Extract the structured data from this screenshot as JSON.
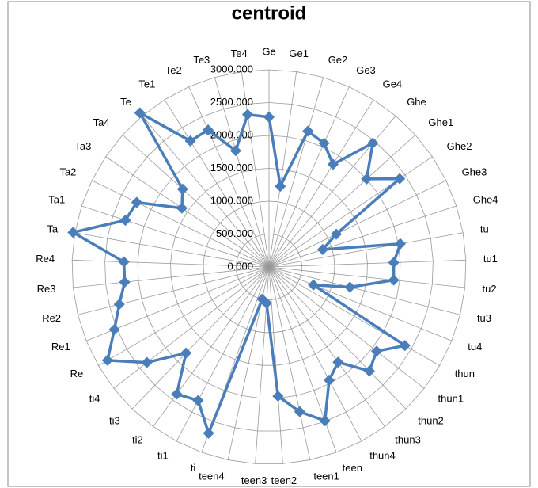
{
  "chart_data": {
    "type": "radar",
    "title": "centroid",
    "categories": [
      "Ge",
      "Ge1",
      "Ge2",
      "Ge3",
      "Ge4",
      "Ghe",
      "Ghe1",
      "Ghe2",
      "Ghe3",
      "Ghe4",
      "tu",
      "tu1",
      "tu2",
      "tu3",
      "tu4",
      "thun",
      "thun1",
      "thun2",
      "thun3",
      "thun4",
      "teen",
      "teen1",
      "teen2",
      "teen3",
      "teen4",
      "ti",
      "ti1",
      "ti2",
      "ti3",
      "ti4",
      "Re",
      "Re1",
      "Re2",
      "Re3",
      "Re4",
      "Ta",
      "Ta1",
      "Ta2",
      "Ta3",
      "Ta4",
      "Te",
      "Te1",
      "Te2",
      "Te3",
      "Te4"
    ],
    "values": [
      2280,
      1240,
      2150,
      2060,
      1840,
      2460,
      2000,
      2400,
      1140,
      860,
      2030,
      1900,
      1910,
      1270,
      730,
      2390,
      2080,
      2200,
      1790,
      1950,
      2490,
      2250,
      1970,
      550,
      500,
      2690,
      2300,
      2390,
      1820,
      2360,
      2840,
      2540,
      2350,
      2210,
      2210,
      3030,
      2300,
      2240,
      1600,
      1770,
      3060,
      2260,
      2280,
      1840,
      2340
    ],
    "color": "#4a7ebb",
    "ylim": [
      0,
      3000
    ],
    "yticks": [
      {
        "value": 0,
        "label": "0.000"
      },
      {
        "value": 500,
        "label": "500.000"
      },
      {
        "value": 1000,
        "label": "1000.000"
      },
      {
        "value": 1500,
        "label": "1500.000"
      },
      {
        "value": 2000,
        "label": "2000.000"
      },
      {
        "value": 2500,
        "label": "2500.000"
      },
      {
        "value": 3000,
        "label": "3000.000"
      }
    ],
    "grid": true
  }
}
